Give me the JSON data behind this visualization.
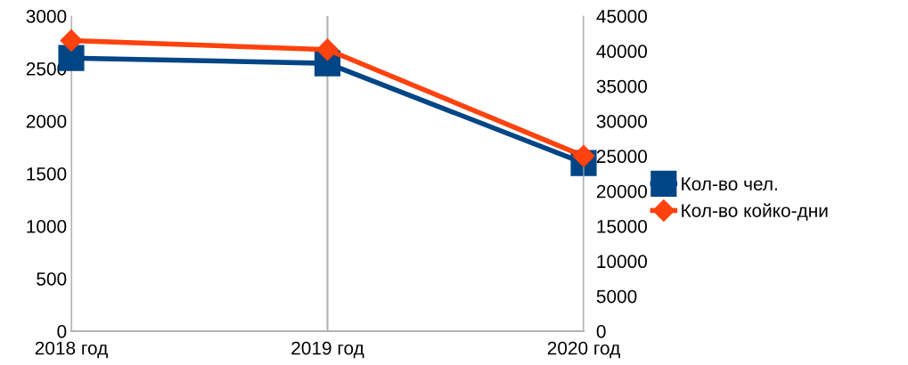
{
  "chart_data": {
    "type": "line",
    "categories": [
      "2018 год",
      "2019 год",
      "2020 год"
    ],
    "series": [
      {
        "name": "Кол-во чел.",
        "color": "#004586",
        "values": [
          2600,
          2550,
          1600
        ],
        "marker": "square"
      },
      {
        "name": "Кол-во койко-дни",
        "color": "#ff420e",
        "values": [
          41500,
          40200,
          25000
        ],
        "marker": "diamond",
        "axis": "y2"
      }
    ],
    "ylim": [
      0,
      3000
    ],
    "yticks": [
      0,
      500,
      1000,
      1500,
      2000,
      2500,
      3000
    ],
    "y2lim": [
      0,
      45000
    ],
    "y2ticks": [
      0,
      5000,
      10000,
      15000,
      20000,
      25000,
      30000,
      35000,
      40000,
      45000
    ],
    "grid": "x",
    "legend": "right",
    "line_style": "solid"
  }
}
